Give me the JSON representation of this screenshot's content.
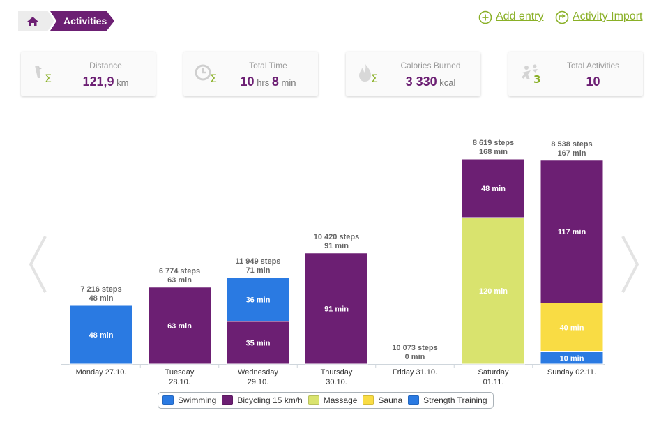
{
  "breadcrumb": {
    "home_icon": "home-icon",
    "current": "Activities"
  },
  "actions": {
    "add_entry": "Add entry",
    "activity_import": "Activity Import"
  },
  "stats": [
    {
      "label": "Distance",
      "value": "121,9",
      "unit": "km",
      "icon": "distance-sum-icon"
    },
    {
      "label": "Total Time",
      "hours": "10",
      "hours_unit": "hrs",
      "minutes": "8",
      "minutes_unit": "min",
      "icon": "clock-sum-icon"
    },
    {
      "label": "Calories Burned",
      "value": "3 330",
      "unit": "kcal",
      "icon": "flame-sum-icon"
    },
    {
      "label": "Total Activities",
      "value": "10",
      "icon": "activities-count-icon"
    }
  ],
  "colors": {
    "accent": "#6c1f73",
    "link": "#8ab027",
    "swimming": "#2a7ae2",
    "bicycling": "#6c1f73",
    "massage": "#d9e36e",
    "sauna": "#f9dc44",
    "strength": "#2a7ae2"
  },
  "chart_data": {
    "type": "bar",
    "stacked": true,
    "unit": "min",
    "categories": [
      "Monday 27.10.",
      "Tuesday 28.10.",
      "Wednesday 29.10.",
      "Thursday 30.10.",
      "Friday 31.10.",
      "Saturday 01.11.",
      "Sunday 02.11."
    ],
    "steps": [
      "7 216 steps",
      "6 774 steps",
      "11 949 steps",
      "10 420 steps",
      "10 073 steps",
      "8 619 steps",
      "8 538 steps"
    ],
    "totals": [
      48,
      63,
      71,
      91,
      0,
      168,
      167
    ],
    "series": [
      {
        "name": "Swimming",
        "color": "#2a7ae2",
        "values": [
          48,
          0,
          36,
          0,
          0,
          0,
          0
        ]
      },
      {
        "name": "Bicycling 15 km/h",
        "color": "#6c1f73",
        "values": [
          0,
          63,
          35,
          91,
          0,
          48,
          117
        ]
      },
      {
        "name": "Massage",
        "color": "#d9e36e",
        "values": [
          0,
          0,
          0,
          0,
          0,
          120,
          0
        ]
      },
      {
        "name": "Sauna",
        "color": "#f9dc44",
        "values": [
          0,
          0,
          0,
          0,
          0,
          0,
          40
        ]
      },
      {
        "name": "Strength Training",
        "color": "#2a7ae2",
        "values": [
          0,
          0,
          0,
          0,
          0,
          0,
          10
        ]
      }
    ],
    "stack_order": [
      [
        "Swimming"
      ],
      [
        "Bicycling 15 km/h"
      ],
      [
        "Bicycling 15 km/h",
        "Swimming"
      ],
      [
        "Bicycling 15 km/h"
      ],
      [],
      [
        "Massage",
        "Bicycling 15 km/h"
      ],
      [
        "Strength Training",
        "Sauna",
        "Bicycling 15 km/h"
      ]
    ],
    "ylim": [
      0,
      180
    ],
    "legend_position": "bottom"
  }
}
